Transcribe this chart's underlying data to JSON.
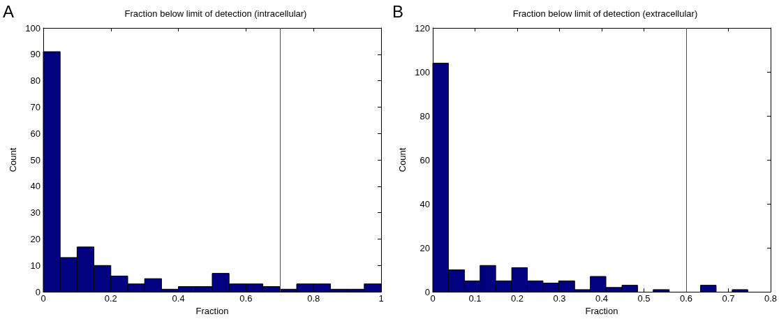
{
  "chart_data": [
    {
      "type": "histogram",
      "title": "Fraction below limit of detection (intracellular)",
      "xlabel": "Fraction",
      "ylabel": "Count",
      "annotations": [
        "A"
      ],
      "bins": [
        0,
        0.05,
        0.1,
        0.15,
        0.2,
        0.25,
        0.3,
        0.35,
        0.4,
        0.45,
        0.5,
        0.55,
        0.6,
        0.65,
        0.7,
        0.75,
        0.8,
        0.85,
        0.9,
        0.95,
        1
      ],
      "values": [
        91,
        13,
        17,
        10,
        6,
        3,
        5,
        1,
        2,
        2,
        7,
        3,
        3,
        2,
        1,
        3,
        3,
        1,
        1,
        3
      ],
      "color": "#000080",
      "xlim": [
        0,
        1
      ],
      "xticks": [
        0,
        0.2,
        0.4,
        0.6,
        0.8,
        1
      ],
      "ylim": [
        0,
        100
      ],
      "yticks": [
        0,
        10,
        20,
        30,
        40,
        50,
        60,
        70,
        80,
        90,
        100
      ],
      "grid": false,
      "ref_lines": [
        {
          "axis": "x",
          "value": 0.7,
          "color": "#ff0000"
        }
      ]
    },
    {
      "type": "histogram",
      "title": "Fraction below limit of detection (extracellular)",
      "xlabel": "Fraction",
      "ylabel": "Count",
      "annotations": [
        "B"
      ],
      "bins": [
        0,
        0.037,
        0.075,
        0.112,
        0.149,
        0.187,
        0.224,
        0.261,
        0.298,
        0.336,
        0.373,
        0.41,
        0.448,
        0.485,
        0.522,
        0.56,
        0.634,
        0.671,
        0.709,
        0.746
      ],
      "values": [
        104,
        10,
        5,
        12,
        5,
        11,
        5,
        4,
        5,
        1,
        7,
        2,
        3,
        0,
        1,
        0,
        3,
        0,
        1
      ],
      "color": "#000080",
      "xlim": [
        0,
        0.8
      ],
      "xticks": [
        0,
        0.1,
        0.2,
        0.3,
        0.4,
        0.5,
        0.6,
        0.7,
        0.8
      ],
      "ylim": [
        0,
        120
      ],
      "yticks": [
        0,
        20,
        40,
        60,
        80,
        100,
        120
      ],
      "grid": false,
      "ref_lines": [
        {
          "axis": "x",
          "value": 0.6,
          "color": "#ff0000"
        }
      ]
    }
  ]
}
